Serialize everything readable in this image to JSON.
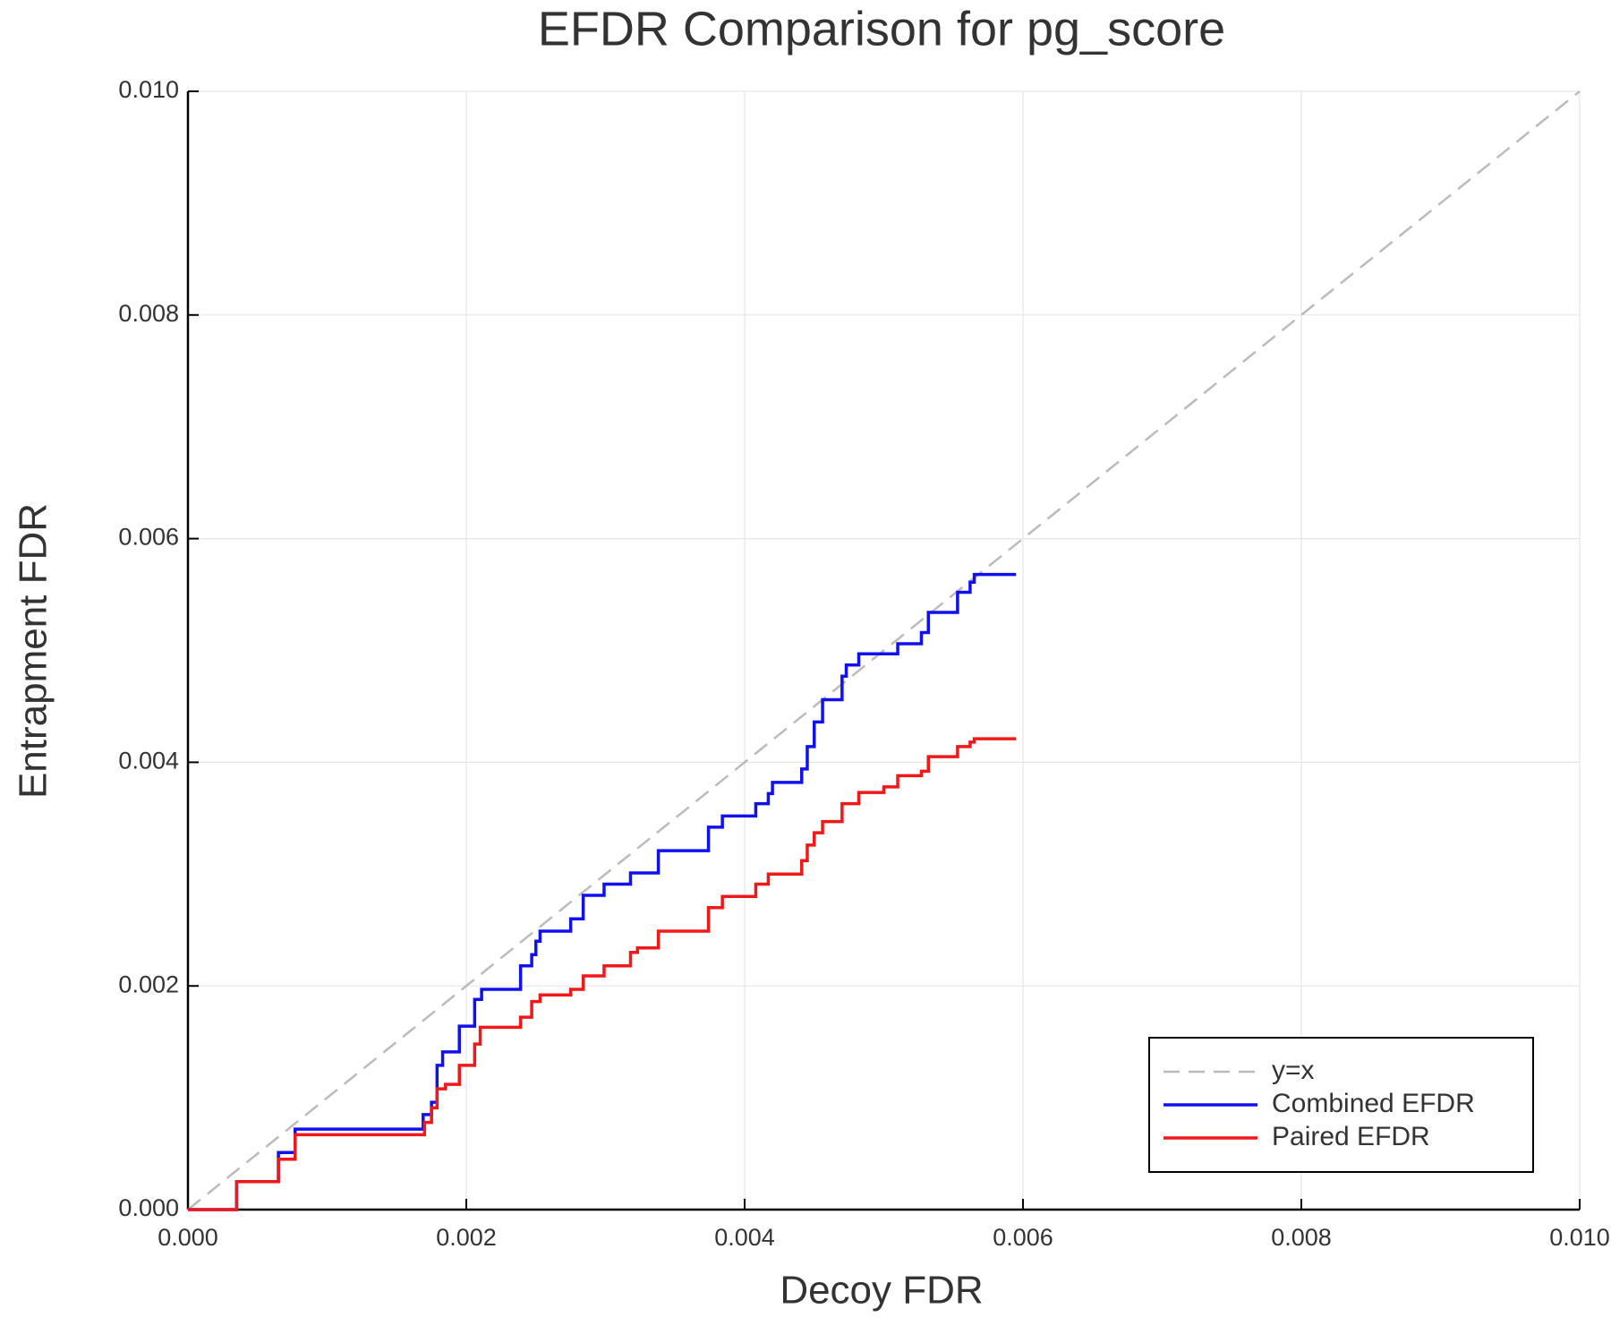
{
  "chart_data": {
    "type": "line",
    "title": "EFDR Comparison for pg_score",
    "x_label": "Decoy FDR",
    "y_label": "Entrapment FDR",
    "xlim": [
      0,
      0.01
    ],
    "ylim": [
      0,
      0.01
    ],
    "xticks": [
      {
        "value": 0,
        "label": "0.000"
      },
      {
        "value": 0.002,
        "label": "0.002"
      },
      {
        "value": 0.004,
        "label": "0.004"
      },
      {
        "value": 0.006,
        "label": "0.006"
      },
      {
        "value": 0.008,
        "label": "0.008"
      },
      {
        "value": 0.01,
        "label": "0.010"
      }
    ],
    "yticks": [
      {
        "value": 0,
        "label": "0.000"
      },
      {
        "value": 0.002,
        "label": "0.002"
      },
      {
        "value": 0.004,
        "label": "0.004"
      },
      {
        "value": 0.006,
        "label": "0.006"
      },
      {
        "value": 0.008,
        "label": "0.008"
      },
      {
        "value": 0.01,
        "label": "0.010"
      }
    ],
    "grid": true,
    "legend_position": "bottom right",
    "series": [
      {
        "name": "y=x",
        "color": "#bbbbbb",
        "line_style": "dashed",
        "x": [
          0,
          0.01
        ],
        "values": [
          0,
          0.01
        ]
      },
      {
        "name": "Combined EFDR",
        "color": "#1010f0",
        "line_style": "solid",
        "x": [
          0,
          0.00035,
          0.00035,
          0.00065,
          0.00065,
          0.00077,
          0.00077,
          0.00169,
          0.00169,
          0.00175,
          0.00175,
          0.00179,
          0.00179,
          0.00183,
          0.00183,
          0.00195,
          0.00195,
          0.00206,
          0.00206,
          0.00211,
          0.00211,
          0.00239,
          0.00239,
          0.00247,
          0.00247,
          0.0025,
          0.0025,
          0.00253,
          0.00253,
          0.00275,
          0.00275,
          0.00284,
          0.00284,
          0.00299,
          0.00299,
          0.00318,
          0.00318,
          0.00338,
          0.00338,
          0.00374,
          0.00374,
          0.00384,
          0.00384,
          0.00408,
          0.00408,
          0.00417,
          0.00417,
          0.0042,
          0.0042,
          0.00441,
          0.00441,
          0.00445,
          0.00445,
          0.0045,
          0.0045,
          0.00456,
          0.00456,
          0.0047,
          0.0047,
          0.00473,
          0.00473,
          0.00482,
          0.00482,
          0.0051,
          0.0051,
          0.00527,
          0.00527,
          0.00532,
          0.00532,
          0.00553,
          0.00553,
          0.00562,
          0.00562,
          0.00565,
          0.00565,
          0.00595
        ],
        "values": [
          0,
          0,
          0.00025,
          0.00025,
          0.00051,
          0.00051,
          0.00072,
          0.00072,
          0.00085,
          0.00085,
          0.00096,
          0.00096,
          0.00129,
          0.00129,
          0.00141,
          0.00141,
          0.00164,
          0.00164,
          0.00188,
          0.00188,
          0.00197,
          0.00197,
          0.00218,
          0.00218,
          0.00228,
          0.00228,
          0.0024,
          0.0024,
          0.00249,
          0.00249,
          0.0026,
          0.0026,
          0.00281,
          0.00281,
          0.00291,
          0.00291,
          0.00301,
          0.00301,
          0.00321,
          0.00321,
          0.00342,
          0.00342,
          0.00352,
          0.00352,
          0.00363,
          0.00363,
          0.00372,
          0.00372,
          0.00382,
          0.00382,
          0.00394,
          0.00394,
          0.00414,
          0.00414,
          0.00436,
          0.00436,
          0.00456,
          0.00456,
          0.00477,
          0.00477,
          0.00487,
          0.00487,
          0.00497,
          0.00497,
          0.00506,
          0.00506,
          0.00516,
          0.00516,
          0.00534,
          0.00534,
          0.00552,
          0.00552,
          0.00561,
          0.00561,
          0.00568,
          0.00568
        ]
      },
      {
        "name": "Paired EFDR",
        "color": "#f01818",
        "line_style": "solid",
        "x": [
          0,
          0.00035,
          0.00035,
          0.00065,
          0.00065,
          0.00077,
          0.00077,
          0.0017,
          0.0017,
          0.00175,
          0.00175,
          0.00179,
          0.00179,
          0.00185,
          0.00185,
          0.00195,
          0.00195,
          0.00206,
          0.00206,
          0.0021,
          0.0021,
          0.00239,
          0.00239,
          0.00247,
          0.00247,
          0.00253,
          0.00253,
          0.00275,
          0.00275,
          0.00284,
          0.00284,
          0.00299,
          0.00299,
          0.00318,
          0.00318,
          0.00323,
          0.00323,
          0.00338,
          0.00338,
          0.00374,
          0.00374,
          0.00384,
          0.00384,
          0.00408,
          0.00408,
          0.00417,
          0.00417,
          0.00441,
          0.00441,
          0.00445,
          0.00445,
          0.0045,
          0.0045,
          0.00456,
          0.00456,
          0.0047,
          0.0047,
          0.00482,
          0.00482,
          0.005,
          0.005,
          0.0051,
          0.0051,
          0.00527,
          0.00527,
          0.00532,
          0.00532,
          0.00553,
          0.00553,
          0.00562,
          0.00562,
          0.00565,
          0.00565,
          0.00595
        ],
        "values": [
          0,
          0,
          0.00025,
          0.00025,
          0.00045,
          0.00045,
          0.00067,
          0.00067,
          0.00078,
          0.00078,
          0.00091,
          0.00091,
          0.00108,
          0.00108,
          0.00112,
          0.00112,
          0.00129,
          0.00129,
          0.00148,
          0.00148,
          0.00163,
          0.00163,
          0.00172,
          0.00172,
          0.00186,
          0.00186,
          0.00192,
          0.00192,
          0.00197,
          0.00197,
          0.00209,
          0.00209,
          0.00218,
          0.00218,
          0.0023,
          0.0023,
          0.00234,
          0.00234,
          0.00249,
          0.00249,
          0.0027,
          0.0027,
          0.0028,
          0.0028,
          0.00291,
          0.00291,
          0.003,
          0.003,
          0.00312,
          0.00312,
          0.00326,
          0.00326,
          0.00337,
          0.00337,
          0.00347,
          0.00347,
          0.00363,
          0.00363,
          0.00373,
          0.00373,
          0.00378,
          0.00378,
          0.00388,
          0.00388,
          0.00392,
          0.00392,
          0.00405,
          0.00405,
          0.00414,
          0.00414,
          0.00418,
          0.00418,
          0.00421,
          0.00421
        ]
      }
    ]
  }
}
